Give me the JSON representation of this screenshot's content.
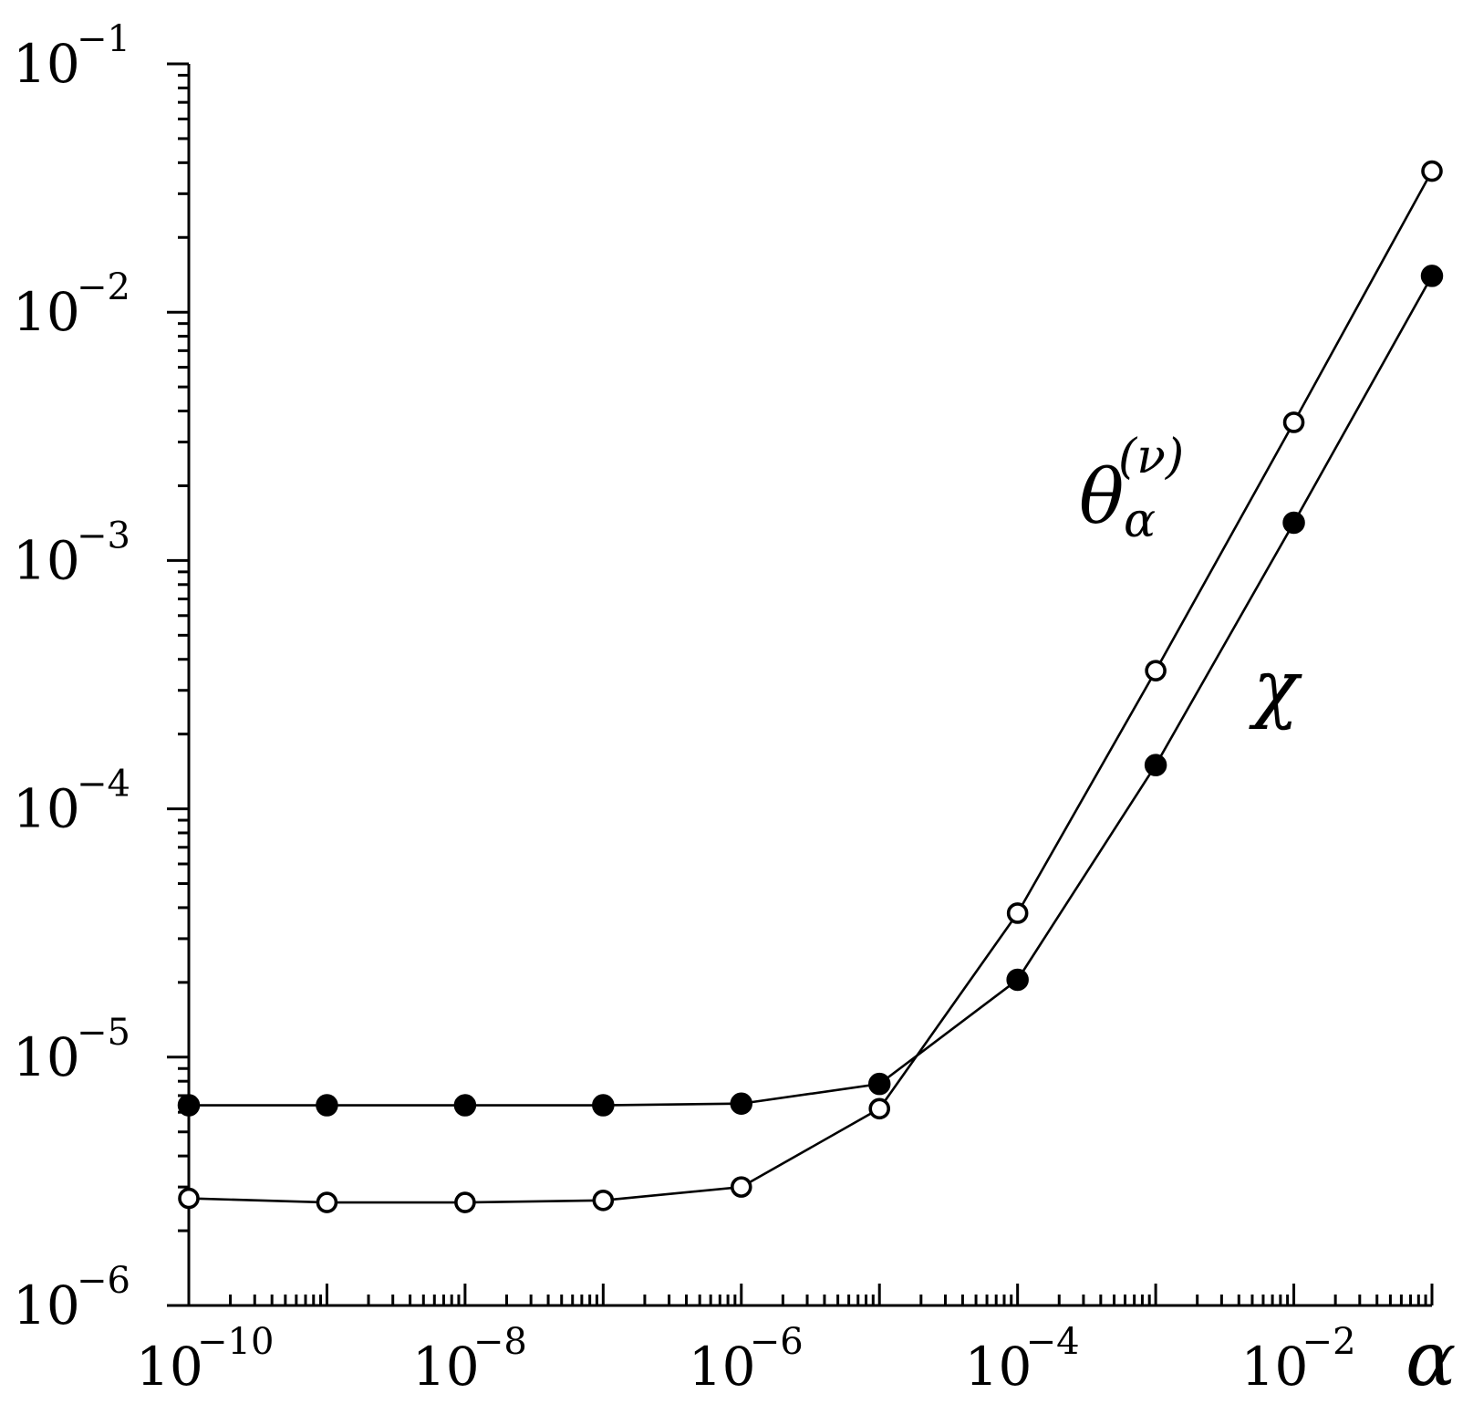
{
  "chart_data": {
    "type": "line",
    "xscale": "log",
    "yscale": "log",
    "xlim": [
      1e-10,
      0.1
    ],
    "ylim": [
      1e-06,
      0.1
    ],
    "x_ticks": [
      {
        "base": "10",
        "exp": "−10"
      },
      {
        "base": "10",
        "exp": "−8"
      },
      {
        "base": "10",
        "exp": "−6"
      },
      {
        "base": "10",
        "exp": "−4"
      },
      {
        "base": "10",
        "exp": "−2"
      }
    ],
    "y_ticks": [
      {
        "base": "10",
        "exp": "−6"
      },
      {
        "base": "10",
        "exp": "−5"
      },
      {
        "base": "10",
        "exp": "−4"
      },
      {
        "base": "10",
        "exp": "−3"
      },
      {
        "base": "10",
        "exp": "−2"
      },
      {
        "base": "10",
        "exp": "−1"
      }
    ],
    "xlabel": "α",
    "x": [
      1e-10,
      1e-09,
      1e-08,
      1e-07,
      1e-06,
      1e-05,
      0.0001,
      0.001,
      0.01,
      0.1
    ],
    "series": [
      {
        "name": "θ_α^(ν)",
        "label_main": "θ",
        "label_sub": "α",
        "label_sup": "(ν)",
        "marker": "open-circle",
        "values": [
          2.7e-06,
          2.6e-06,
          2.6e-06,
          2.65e-06,
          3e-06,
          6.2e-06,
          3.8e-05,
          0.00036,
          0.0036,
          0.037
        ]
      },
      {
        "name": "χ",
        "label_main": "χ",
        "marker": "filled-circle",
        "values": [
          6.4e-06,
          6.4e-06,
          6.4e-06,
          6.4e-06,
          6.5e-06,
          7.8e-06,
          2.05e-05,
          0.00015,
          0.00142,
          0.014
        ]
      }
    ],
    "grid": false,
    "legend": "none (inline labels)"
  }
}
